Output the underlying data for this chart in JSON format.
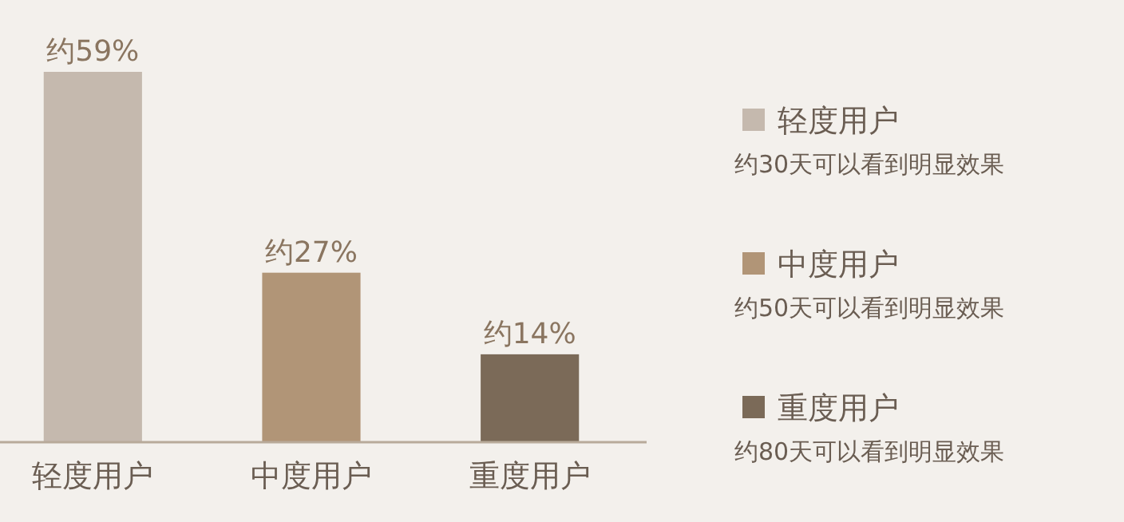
{
  "chart_data": {
    "type": "bar",
    "categories": [
      "轻度用户",
      "中度用户",
      "重度用户"
    ],
    "values": [
      59,
      27,
      14
    ],
    "colors": [
      "#c5b9ae",
      "#b19577",
      "#7b6a58"
    ],
    "value_labels": [
      "约59%",
      "约27%",
      "约14%"
    ],
    "annotations": [
      "约30天可以看到明显效果",
      "约50天可以看到明显效果",
      "约80天可以看到明显效果"
    ]
  }
}
